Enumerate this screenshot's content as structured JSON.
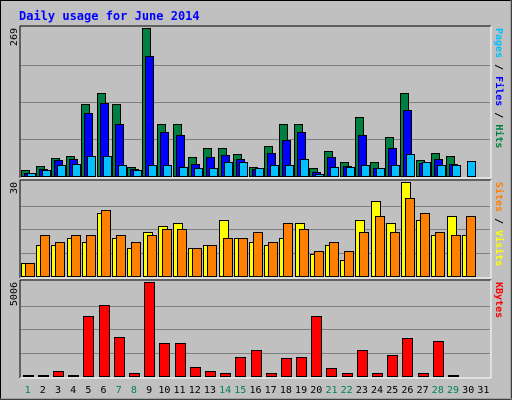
{
  "chart_data": {
    "type": "bar",
    "title": "Daily usage for June 2014",
    "categories": [
      "1",
      "2",
      "3",
      "4",
      "5",
      "6",
      "7",
      "8",
      "9",
      "10",
      "11",
      "12",
      "13",
      "14",
      "15",
      "16",
      "17",
      "18",
      "19",
      "20",
      "21",
      "22",
      "23",
      "24",
      "25",
      "26",
      "27",
      "28",
      "29",
      "30",
      "31"
    ],
    "weekend_days": [
      "1",
      "7",
      "8",
      "14",
      "15",
      "21",
      "22",
      "28",
      "29"
    ],
    "panels": [
      {
        "name": "hits-files-pages",
        "ymax": 269,
        "ymax_label": "269",
        "axis_labels": [
          {
            "text": "Pages",
            "color": "#00c0ff"
          },
          {
            "text": " / ",
            "color": "#000000"
          },
          {
            "text": "Files",
            "color": "#0000ff"
          },
          {
            "text": " / ",
            "color": "#000000"
          },
          {
            "text": "Hits",
            "color": "#008040"
          }
        ],
        "series": [
          {
            "name": "Hits",
            "color": "#008040",
            "values": [
              10,
              18,
              32,
              36,
              130,
              150,
              130,
              16,
              269,
              95,
              95,
              35,
              50,
              50,
              40,
              16,
              55,
              95,
              95,
              14,
              45,
              26,
              108,
              26,
              70,
              150,
              29,
              42,
              36,
              0,
              0
            ]
          },
          {
            "name": "Files",
            "color": "#0000ff",
            "values": [
              6,
              12,
              29,
              30,
              115,
              132,
              95,
              12,
              218,
              80,
              75,
              22,
              35,
              38,
              30,
              12,
              42,
              65,
              80,
              8,
              35,
              18,
              75,
              15,
              50,
              120,
              23,
              30,
              22,
              0,
              0
            ]
          },
          {
            "name": "Pages",
            "color": "#00c0ff",
            "values": [
              5,
              10,
              20,
              22,
              36,
              36,
              20,
              10,
              20,
              20,
              16,
              15,
              15,
              25,
              25,
              15,
              20,
              20,
              30,
              4,
              16,
              16,
              20,
              14,
              20,
              40,
              25,
              20,
              20,
              28,
              0
            ]
          }
        ]
      },
      {
        "name": "visits-sites",
        "ymax": 30,
        "ymax_label": "30",
        "axis_labels": [
          {
            "text": "Sites",
            "color": "#ff8000"
          },
          {
            "text": " / ",
            "color": "#000000"
          },
          {
            "text": "Visits",
            "color": "#ffff00"
          }
        ],
        "series": [
          {
            "name": "Visits",
            "color": "#ffff00",
            "values": [
              4,
              10,
              10,
              12,
              11,
              20,
              12,
              9,
              14,
              16,
              17,
              9,
              10,
              18,
              12,
              11,
              10,
              12,
              17,
              7,
              10,
              5,
              18,
              24,
              17,
              30,
              18,
              13,
              19,
              13,
              0
            ]
          },
          {
            "name": "Sites",
            "color": "#ff8000",
            "values": [
              4,
              13,
              11,
              13,
              13,
              21,
              13,
              11,
              13,
              15,
              15,
              9,
              10,
              12,
              12,
              14,
              11,
              17,
              15,
              8,
              11,
              8,
              14,
              19,
              14,
              25,
              20,
              14,
              13,
              19,
              0
            ]
          }
        ]
      },
      {
        "name": "kbytes",
        "ymax": 5006,
        "ymax_label": "5006",
        "axis_labels": [
          {
            "text": "KBytes",
            "color": "#ff0000"
          }
        ],
        "series": [
          {
            "name": "KBytes",
            "color": "#ff0000",
            "values": [
              70,
              70,
              270,
              70,
              3200,
              3800,
              2060,
              140,
              5006,
              1760,
              1760,
              480,
              280,
              140,
              1000,
              1370,
              140,
              950,
              1020,
              3200,
              450,
              140,
              1380,
              140,
              1130,
              2010,
              140,
              1840,
              70,
              0,
              0
            ]
          }
        ]
      }
    ]
  }
}
